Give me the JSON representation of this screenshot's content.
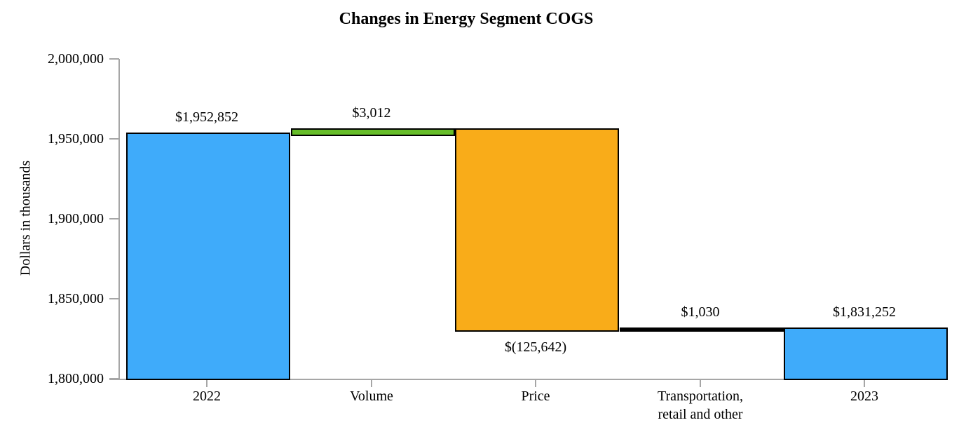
{
  "title": "Changes in Energy Segment COGS",
  "y_axis": {
    "title": "Dollars in thousands"
  },
  "chart_data": {
    "type": "bar",
    "subtype": "waterfall",
    "title": "Changes in Energy Segment COGS",
    "xlabel": "",
    "ylabel": "Dollars in thousands",
    "ylim": [
      1800000,
      2000000
    ],
    "grid": false,
    "legend": "none",
    "yticks": [
      {
        "value": 2000000,
        "label": "2,000,000"
      },
      {
        "value": 1950000,
        "label": "1,950,000"
      },
      {
        "value": 1900000,
        "label": "1,900,000"
      },
      {
        "value": 1850000,
        "label": "1,850,000"
      },
      {
        "value": 1800000,
        "label": "1,800,000"
      }
    ],
    "categories": [
      "2022",
      "Volume",
      "Price",
      "Transportation,\nretail and other",
      "2023"
    ],
    "bars": [
      {
        "name": "bar-2022",
        "category": "2022",
        "data_label": "$1,952,852",
        "value": 1952852,
        "start": 1800000,
        "end": 1952852,
        "color_key": "blue",
        "label_position": "above"
      },
      {
        "name": "bar-volume",
        "category": "Volume",
        "data_label": "$3,012",
        "value": 3012,
        "start": 1952852,
        "end": 1955864,
        "color_key": "green",
        "label_position": "above"
      },
      {
        "name": "bar-price",
        "category": "Price",
        "data_label": "$(125,642)",
        "value": -125642,
        "start": 1955864,
        "end": 1830222,
        "color_key": "orange",
        "label_position": "below"
      },
      {
        "name": "bar-transportation-retail-and-other",
        "category": "Transportation,\nretail and other",
        "data_label": "$1,030",
        "value": 1030,
        "start": 1830222,
        "end": 1831252,
        "color_key": "black",
        "label_position": "above"
      },
      {
        "name": "bar-2023",
        "category": "2023",
        "data_label": "$1,831,252",
        "value": 1831252,
        "start": 1800000,
        "end": 1831252,
        "color_key": "blue",
        "label_position": "above"
      }
    ],
    "colors": {
      "blue": "#3FABFA",
      "green": "#66BD29",
      "orange": "#F9AC19",
      "black": "#000000",
      "bar_border": "#000000",
      "axis": "#A6A6A6",
      "text": "#000000"
    }
  }
}
